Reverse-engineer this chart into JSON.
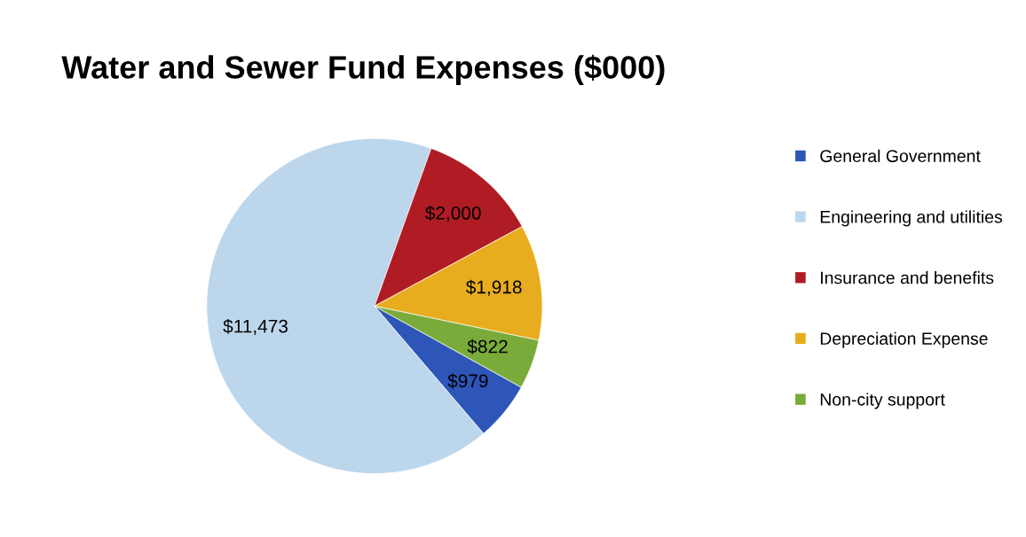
{
  "chart_data": {
    "type": "pie",
    "title": "Water and Sewer Fund Expenses ($000)",
    "categories": [
      "General Government",
      "Engineering and utilities",
      "Insurance and benefits",
      "Depreciation Expense",
      "Non-city support"
    ],
    "values": [
      979,
      11473,
      2000,
      1918,
      822
    ],
    "colors": [
      "#2e56b8",
      "#bcd6ec",
      "#b01c24",
      "#e8ad1e",
      "#7aab3a"
    ],
    "value_labels": [
      "$979",
      "$11,473",
      "$2,000",
      "$1,918",
      "$822"
    ],
    "legend": "right"
  }
}
